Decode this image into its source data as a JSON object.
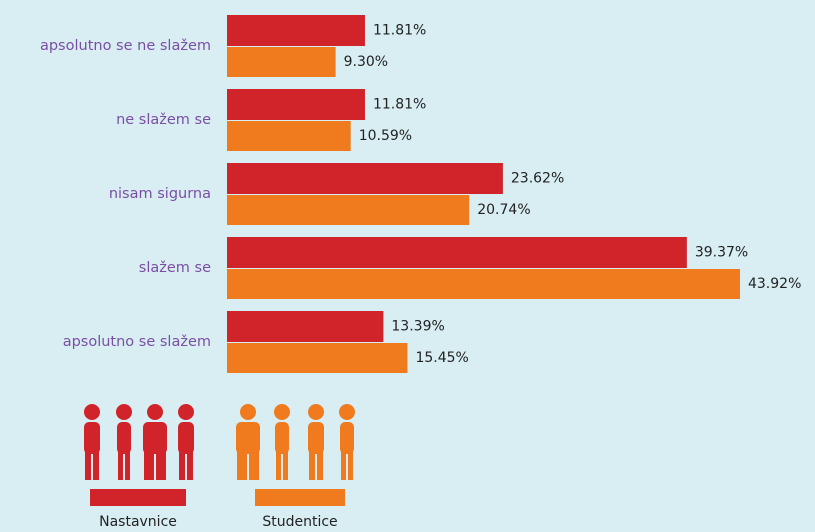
{
  "chart_data": {
    "type": "bar",
    "orientation": "horizontal",
    "categories": [
      "apsolutno se ne slažem",
      "ne slažem se",
      "nisam sigurna",
      "slažem se",
      "apsolutno se slažem"
    ],
    "series": [
      {
        "name": "Nastavnice",
        "color": "#d1232a",
        "values": [
          11.81,
          11.81,
          23.62,
          39.37,
          13.39
        ],
        "value_labels": [
          "11.81%",
          "11.81%",
          "23.62%",
          "39.37%",
          "13.39%"
        ]
      },
      {
        "name": "Studentice",
        "color": "#f07a1e",
        "values": [
          9.3,
          10.59,
          20.74,
          43.92,
          15.45
        ],
        "value_labels": [
          "9.30%",
          "10.59%",
          "20.74%",
          "43.92%",
          "15.45%"
        ]
      }
    ]
  }
}
